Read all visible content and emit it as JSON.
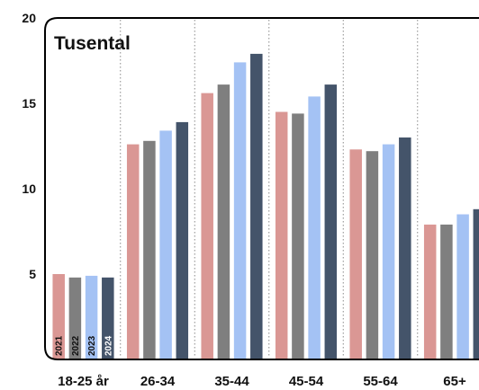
{
  "chart_data": {
    "type": "bar",
    "title": "Tusental",
    "xlabel": "",
    "ylabel": "",
    "ylim": [
      0,
      20
    ],
    "yticks": [
      5,
      10,
      15,
      20
    ],
    "legend_placement": "inside bars of first category, rotated",
    "grid": "vertical dotted separators between categories",
    "categories": [
      "18-25 år",
      "26-34",
      "35-44",
      "45-54",
      "55-64",
      "65+"
    ],
    "series": [
      {
        "name": "2021",
        "color": "#DA9794",
        "label_color": "#111111",
        "values": [
          5.0,
          12.6,
          15.6,
          14.5,
          12.3,
          7.9
        ]
      },
      {
        "name": "2022",
        "color": "#7F7F7F",
        "label_color": "#111111",
        "values": [
          4.8,
          12.8,
          16.1,
          14.4,
          12.2,
          7.9
        ]
      },
      {
        "name": "2023",
        "color": "#A4C2F4",
        "label_color": "#111111",
        "values": [
          4.9,
          13.4,
          17.4,
          15.4,
          12.6,
          8.5
        ]
      },
      {
        "name": "2024",
        "color": "#44546A",
        "label_color": "#ffffff",
        "values": [
          4.8,
          13.9,
          17.9,
          16.1,
          13.0,
          8.8
        ]
      }
    ]
  }
}
